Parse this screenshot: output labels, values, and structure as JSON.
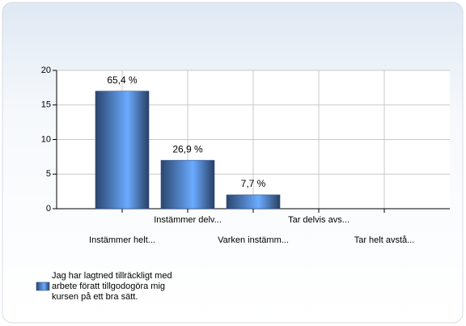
{
  "chart_data": {
    "type": "bar",
    "categories": [
      "Instämmer helt...",
      "Instämmer delv...",
      "Varken instämm...",
      "Tar delvis avs...",
      "Tar helt avstå..."
    ],
    "series": [
      {
        "name": "Jag har lagtned tillräckligt med arbete föratt tillgodogöra mig kursen på ett bra sätt.",
        "color": "#4f7fc8",
        "values": [
          17,
          7,
          2,
          0,
          0
        ]
      }
    ],
    "annotations": [
      "65,4 %",
      "26,9 %",
      "7,7 %",
      null,
      null
    ],
    "ylim": [
      0,
      20
    ],
    "yticks": [
      0,
      5,
      10,
      15,
      20
    ],
    "grid": true,
    "legend": "bottom-left"
  }
}
